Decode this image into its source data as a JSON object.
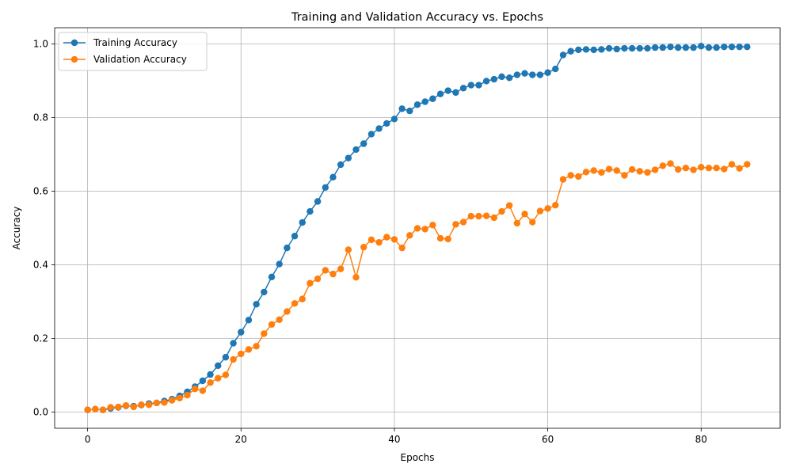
{
  "chart_data": {
    "type": "line",
    "title": "Training and Validation Accuracy vs. Epochs",
    "xlabel": "Epochs",
    "ylabel": "Accuracy",
    "xlim": [
      -4.3,
      90.3
    ],
    "ylim": [
      -0.044,
      1.044
    ],
    "xticks": [
      0,
      20,
      40,
      60,
      80
    ],
    "yticks": [
      0.0,
      0.2,
      0.4,
      0.6,
      0.8,
      1.0
    ],
    "xtick_labels": [
      "0",
      "20",
      "40",
      "60",
      "80"
    ],
    "ytick_labels": [
      "0.0",
      "0.2",
      "0.4",
      "0.6",
      "0.8",
      "1.0"
    ],
    "grid": true,
    "legend_position": "upper-left",
    "x": [
      0,
      1,
      2,
      3,
      4,
      5,
      6,
      7,
      8,
      9,
      10,
      11,
      12,
      13,
      14,
      15,
      16,
      17,
      18,
      19,
      20,
      21,
      22,
      23,
      24,
      25,
      26,
      27,
      28,
      29,
      30,
      31,
      32,
      33,
      34,
      35,
      36,
      37,
      38,
      39,
      40,
      41,
      42,
      43,
      44,
      45,
      46,
      47,
      48,
      49,
      50,
      51,
      52,
      53,
      54,
      55,
      56,
      57,
      58,
      59,
      60,
      61,
      62,
      63,
      64,
      65,
      66,
      67,
      68,
      69,
      70,
      71,
      72,
      73,
      74,
      75,
      76,
      77,
      78,
      79,
      80,
      81,
      82,
      83,
      84,
      85,
      86
    ],
    "series": [
      {
        "name": "Training Accuracy",
        "color": "#1f77b4",
        "values": [
          0.006,
          0.008,
          0.006,
          0.01,
          0.013,
          0.017,
          0.016,
          0.019,
          0.023,
          0.025,
          0.03,
          0.035,
          0.044,
          0.055,
          0.069,
          0.085,
          0.102,
          0.126,
          0.149,
          0.187,
          0.217,
          0.25,
          0.293,
          0.326,
          0.367,
          0.402,
          0.446,
          0.478,
          0.515,
          0.545,
          0.572,
          0.61,
          0.638,
          0.672,
          0.69,
          0.713,
          0.729,
          0.755,
          0.77,
          0.784,
          0.796,
          0.824,
          0.818,
          0.835,
          0.843,
          0.851,
          0.864,
          0.873,
          0.868,
          0.88,
          0.888,
          0.888,
          0.899,
          0.904,
          0.911,
          0.908,
          0.916,
          0.92,
          0.916,
          0.916,
          0.922,
          0.932,
          0.97,
          0.98,
          0.984,
          0.985,
          0.984,
          0.985,
          0.988,
          0.986,
          0.988,
          0.988,
          0.988,
          0.988,
          0.99,
          0.99,
          0.992,
          0.99,
          0.99,
          0.99,
          0.994,
          0.99,
          0.99,
          0.992,
          0.992,
          0.992,
          0.992
        ]
      },
      {
        "name": "Validation Accuracy",
        "color": "#ff7f0e",
        "values": [
          0.006,
          0.008,
          0.006,
          0.013,
          0.014,
          0.018,
          0.014,
          0.02,
          0.02,
          0.025,
          0.026,
          0.032,
          0.038,
          0.046,
          0.063,
          0.058,
          0.08,
          0.092,
          0.101,
          0.143,
          0.158,
          0.17,
          0.179,
          0.213,
          0.238,
          0.251,
          0.273,
          0.295,
          0.307,
          0.35,
          0.362,
          0.385,
          0.375,
          0.389,
          0.441,
          0.366,
          0.448,
          0.468,
          0.461,
          0.475,
          0.469,
          0.446,
          0.48,
          0.499,
          0.497,
          0.508,
          0.472,
          0.47,
          0.51,
          0.516,
          0.532,
          0.532,
          0.533,
          0.528,
          0.545,
          0.561,
          0.513,
          0.538,
          0.516,
          0.546,
          0.553,
          0.562,
          0.632,
          0.643,
          0.64,
          0.652,
          0.656,
          0.651,
          0.66,
          0.656,
          0.643,
          0.659,
          0.654,
          0.651,
          0.658,
          0.669,
          0.675,
          0.659,
          0.663,
          0.658,
          0.665,
          0.663,
          0.663,
          0.66,
          0.673,
          0.662,
          0.673
        ]
      }
    ]
  }
}
